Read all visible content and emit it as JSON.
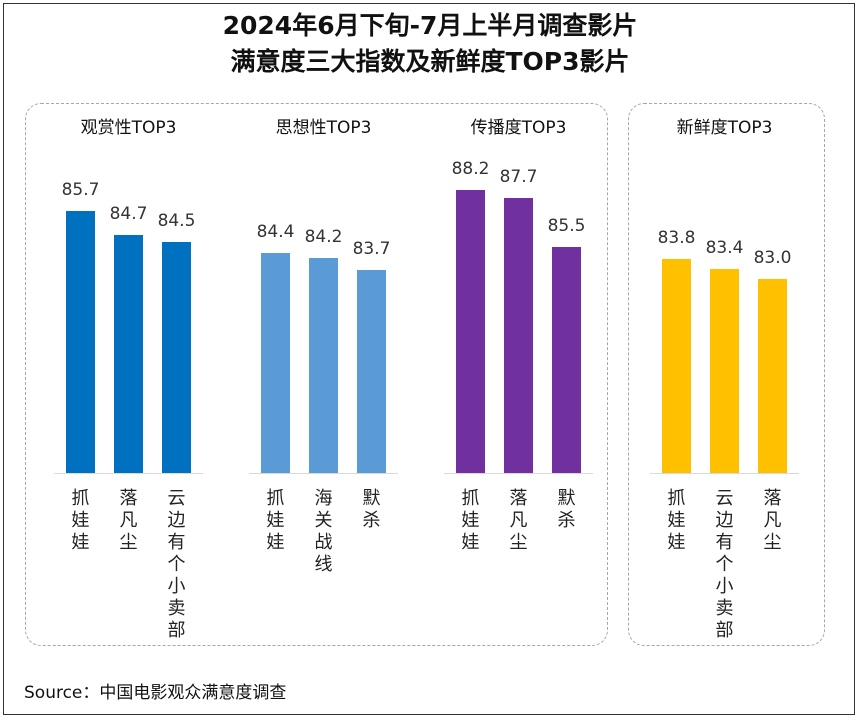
{
  "title_line1": "2024年6月下旬-7月上半月调查影片",
  "title_line2": "满意度三大指数及新鲜度TOP3影片",
  "source": "Source：中国电影观众满意度调查",
  "chart_data": [
    {
      "type": "bar",
      "title": "观赏性TOP3",
      "categories": [
        "抓娃娃",
        "落凡尘",
        "云边有个小卖部"
      ],
      "values": [
        85.7,
        84.7,
        84.5
      ],
      "color": "#0070C0"
    },
    {
      "type": "bar",
      "title": "思想性TOP3",
      "categories": [
        "抓娃娃",
        "海关战线",
        "默杀"
      ],
      "values": [
        84.4,
        84.2,
        83.7
      ],
      "color": "#5B9BD5"
    },
    {
      "type": "bar",
      "title": "传播度TOP3",
      "categories": [
        "抓娃娃",
        "落凡尘",
        "默杀"
      ],
      "values": [
        88.2,
        87.7,
        85.5
      ],
      "color": "#7030A0"
    },
    {
      "type": "bar",
      "title": "新鲜度TOP3",
      "categories": [
        "抓娃娃",
        "云边有个小卖部",
        "落凡尘"
      ],
      "values": [
        83.8,
        83.4,
        83.0
      ],
      "color": "#FFC000"
    }
  ]
}
